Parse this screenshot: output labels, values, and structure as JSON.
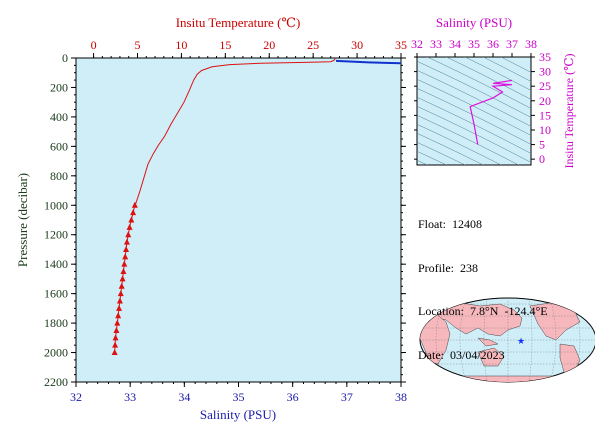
{
  "chart_data": [
    {
      "type": "line",
      "title": "",
      "xlabel_top": "Insitu Temperature (℃)",
      "xlabel_bottom": "Salinity (PSU)",
      "ylabel": "Pressure (decibar)",
      "temp_lim": [
        -2,
        35
      ],
      "sal_lim": [
        32,
        38
      ],
      "ylim": [
        2200,
        0
      ],
      "temp_ticks": [
        "0",
        "5",
        "10",
        "15",
        "20",
        "25",
        "30",
        "35"
      ],
      "sal_ticks": [
        "32",
        "33",
        "34",
        "35",
        "36",
        "37",
        "38"
      ],
      "pres_ticks": [
        "0",
        "200",
        "400",
        "600",
        "800",
        "1000",
        "1200",
        "1400",
        "1600",
        "1800",
        "2000",
        "2200"
      ],
      "series": [
        {
          "color": "#dd1111",
          "marker": "none",
          "axis": "temperature",
          "points": [
            [
              27.5,
              5
            ],
            [
              27.4,
              15
            ],
            [
              27.0,
              25
            ],
            [
              24.0,
              30
            ],
            [
              19.0,
              35
            ],
            [
              15.5,
              45
            ],
            [
              13.5,
              60
            ],
            [
              12.3,
              85
            ],
            [
              11.8,
              110
            ],
            [
              11.4,
              150
            ],
            [
              10.9,
              220
            ],
            [
              10.3,
              300
            ],
            [
              9.5,
              380
            ],
            [
              8.8,
              450
            ],
            [
              8.1,
              530
            ],
            [
              7.4,
              590
            ],
            [
              6.8,
              650
            ],
            [
              6.2,
              720
            ],
            [
              5.8,
              800
            ],
            [
              5.3,
              900
            ],
            [
              4.8,
              990
            ]
          ]
        },
        {
          "color": "#dd1111",
          "marker": "triangle",
          "axis": "temperature",
          "points": [
            [
              4.7,
              1000
            ],
            [
              4.5,
              1050
            ],
            [
              4.3,
              1100
            ],
            [
              4.1,
              1150
            ],
            [
              3.95,
              1200
            ],
            [
              3.8,
              1250
            ],
            [
              3.7,
              1300
            ],
            [
              3.6,
              1350
            ],
            [
              3.5,
              1400
            ],
            [
              3.4,
              1450
            ],
            [
              3.3,
              1500
            ],
            [
              3.2,
              1550
            ],
            [
              3.1,
              1600
            ],
            [
              3.0,
              1650
            ],
            [
              2.9,
              1700
            ],
            [
              2.8,
              1750
            ],
            [
              2.7,
              1800
            ],
            [
              2.6,
              1850
            ],
            [
              2.5,
              1900
            ],
            [
              2.45,
              1950
            ],
            [
              2.4,
              2000
            ]
          ]
        },
        {
          "color": "#1133cc",
          "marker": "none",
          "axis": "salinity",
          "points": [
            [
              36.8,
              20
            ],
            [
              37.4,
              30
            ],
            [
              38.0,
              35
            ]
          ]
        }
      ]
    },
    {
      "type": "scatter",
      "title": "",
      "xlabel": "Salinity (PSU)",
      "ylabel": "Insitu Temperature (℃)",
      "xlim": [
        32,
        38
      ],
      "ylim": [
        -2,
        35
      ],
      "x_ticks": [
        "32",
        "33",
        "34",
        "35",
        "36",
        "37",
        "38"
      ],
      "y_ticks": [
        "0",
        "5",
        "10",
        "15",
        "20",
        "25",
        "30",
        "35"
      ],
      "series": [
        {
          "color": "#dd11dd",
          "points": [
            [
              35.2,
              5
            ],
            [
              35.0,
              12
            ],
            [
              34.8,
              18
            ],
            [
              36.0,
              21
            ],
            [
              36.5,
              23
            ],
            [
              36.0,
              25
            ],
            [
              37.0,
              25.5
            ],
            [
              36.0,
              26
            ],
            [
              37.0,
              27
            ]
          ]
        }
      ]
    }
  ],
  "info": {
    "float": "Float:  12408",
    "profile": "Profile:  238",
    "location": "Location:  7.8°N  -124.4°E",
    "date": "Date:  03/04/2023"
  },
  "colors": {
    "temp_axis": "#cc0000",
    "sal_axis": "#1a1aaa",
    "pres_axis": "#1a3a1a",
    "ts_axis": "#cc00cc",
    "plot_bg": "#cfeef8"
  },
  "map": {
    "marker_icon": "star-icon",
    "marker_lat": 7.8,
    "marker_lon": -124.4
  }
}
